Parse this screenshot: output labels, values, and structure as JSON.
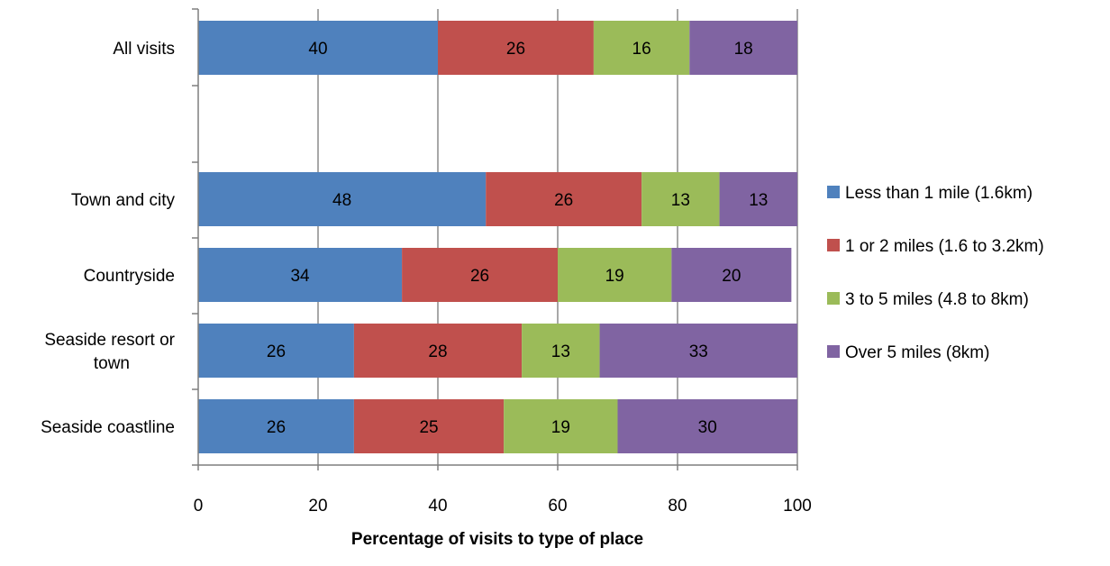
{
  "chart_data": {
    "type": "bar",
    "orientation": "horizontal",
    "stacked": true,
    "title": "",
    "xlabel": "Percentage of visits to type of place",
    "ylabel": "",
    "xlim": [
      0,
      100
    ],
    "xticks": [
      0,
      20,
      40,
      60,
      80,
      100
    ],
    "grid": true,
    "legend_position": "right",
    "categories": [
      "All visits",
      "Town and city",
      "Countryside",
      "Seaside resort or town",
      "Seaside coastline"
    ],
    "category_lines": [
      [
        "All visits"
      ],
      [
        "Town and city"
      ],
      [
        "Countryside"
      ],
      [
        "Seaside resort or",
        "town"
      ],
      [
        "Seaside coastline"
      ]
    ],
    "series": [
      {
        "name": "Less than 1 mile (1.6km)",
        "color": "#4f81bd",
        "values": [
          40,
          48,
          34,
          26,
          26
        ]
      },
      {
        "name": "1 or 2 miles (1.6 to 3.2km)",
        "color": "#c0504d",
        "values": [
          26,
          26,
          26,
          28,
          25
        ]
      },
      {
        "name": "3 to 5 miles (4.8 to 8km)",
        "color": "#9bbb59",
        "values": [
          16,
          13,
          19,
          13,
          19
        ]
      },
      {
        "name": "Over 5 miles (8km)",
        "color": "#8064a2",
        "values": [
          18,
          13,
          20,
          33,
          30
        ]
      }
    ]
  }
}
